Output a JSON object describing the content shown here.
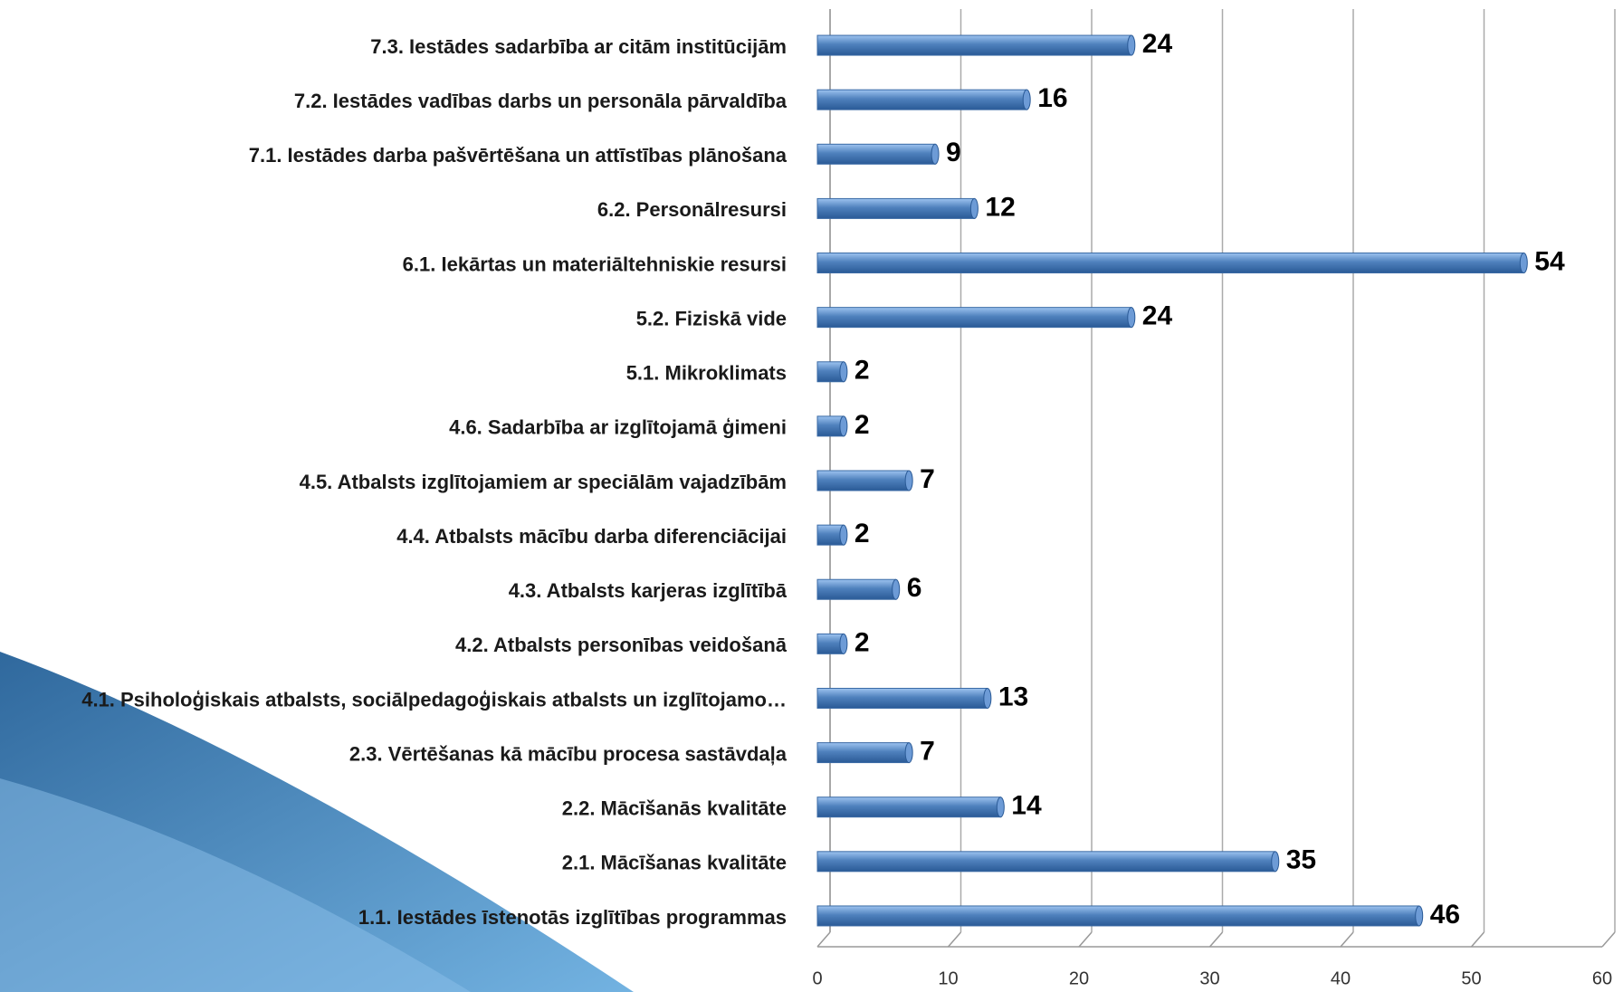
{
  "chart_data": {
    "type": "bar",
    "orientation": "horizontal",
    "categories": [
      "7.3. Iestādes sadarbība ar citām institūcijām",
      "7.2. Iestādes vadības darbs un personāla pārvaldība",
      "7.1. Iestādes darba pašvērtēšana un attīstības plānošana",
      "6.2. Personālresursi",
      "6.1. Iekārtas un materiāltehniskie resursi",
      "5.2. Fiziskā vide",
      "5.1. Mikroklimats",
      "4.6. Sadarbība ar izglītojamā ģimeni",
      "4.5. Atbalsts izglītojamiem ar speciālām vajadzībām",
      "4.4. Atbalsts mācību darba diferenciācijai",
      "4.3. Atbalsts karjeras izglītībā",
      "4.2. Atbalsts personības veidošanā",
      "4.1. Psiholoģiskais atbalsts, sociālpedagoģiskais atbalsts un izglītojamo…",
      "2.3. Vērtēšanas kā mācību procesa sastāvdaļa",
      "2.2. Mācīšanās kvalitāte",
      "2.1. Mācīšanas kvalitāte",
      "1.1. Iestādes īstenotās izglītības programmas"
    ],
    "values": [
      24,
      16,
      9,
      12,
      54,
      24,
      2,
      2,
      7,
      2,
      6,
      2,
      13,
      7,
      14,
      35,
      46
    ],
    "color": "#4f81bd",
    "xlim": [
      0,
      60
    ],
    "xticks": [
      0,
      10,
      20,
      30,
      40,
      50,
      60
    ],
    "grid": true
  }
}
